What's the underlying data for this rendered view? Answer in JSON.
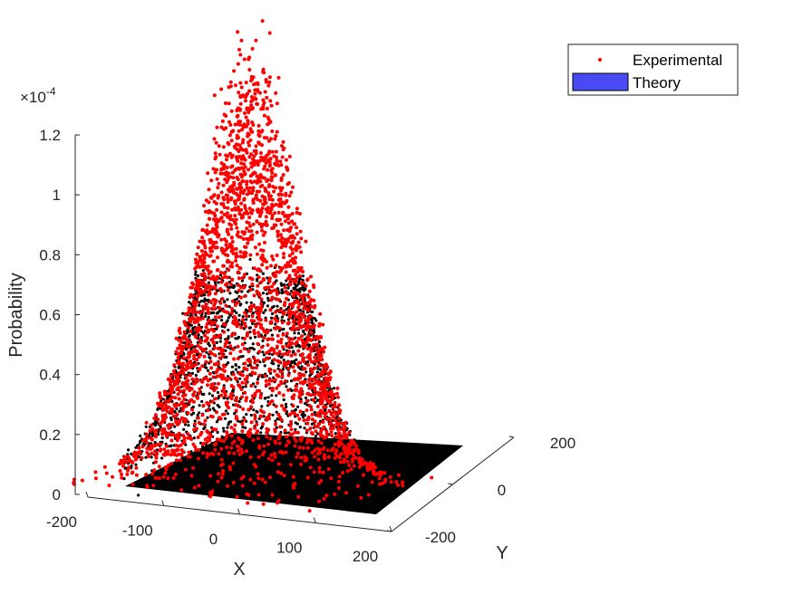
{
  "chart_data": {
    "type": "scatter",
    "title": "",
    "xlabel": "X",
    "ylabel": "Y",
    "zlabel": "Probability",
    "xlim": [
      -200,
      200
    ],
    "ylim": [
      -200,
      200
    ],
    "zlim": [
      0,
      0.00012
    ],
    "exponent_label": "×10",
    "exponent_power": "-4",
    "x_ticks": [
      {
        "value": -200,
        "label": "-200"
      },
      {
        "value": -100,
        "label": "-100"
      },
      {
        "value": 0,
        "label": "0"
      },
      {
        "value": 100,
        "label": "100"
      },
      {
        "value": 200,
        "label": "200"
      }
    ],
    "y_ticks": [
      {
        "value": -200,
        "label": "-200"
      },
      {
        "value": 0,
        "label": "0"
      },
      {
        "value": 200,
        "label": "200"
      }
    ],
    "z_ticks": [
      {
        "value": 0,
        "label": "0"
      },
      {
        "value": 2e-05,
        "label": "0.2"
      },
      {
        "value": 4e-05,
        "label": "0.4"
      },
      {
        "value": 6e-05,
        "label": "0.6"
      },
      {
        "value": 8e-05,
        "label": "0.8"
      },
      {
        "value": 0.0001,
        "label": "1"
      },
      {
        "value": 0.00012,
        "label": "1.2"
      }
    ],
    "series": [
      {
        "name": "Experimental",
        "kind": "scatter",
        "color": "#ff0000",
        "distribution": "2D Gaussian, centered at (0,0), peak ≈ 1.2e-4, σ ≈ 80"
      },
      {
        "name": "Theory",
        "kind": "surface",
        "color": "#4a4af5",
        "distribution": "2D Gaussian surface rendered as black contour rings"
      }
    ],
    "grid": false,
    "legend_position": "top-right"
  }
}
